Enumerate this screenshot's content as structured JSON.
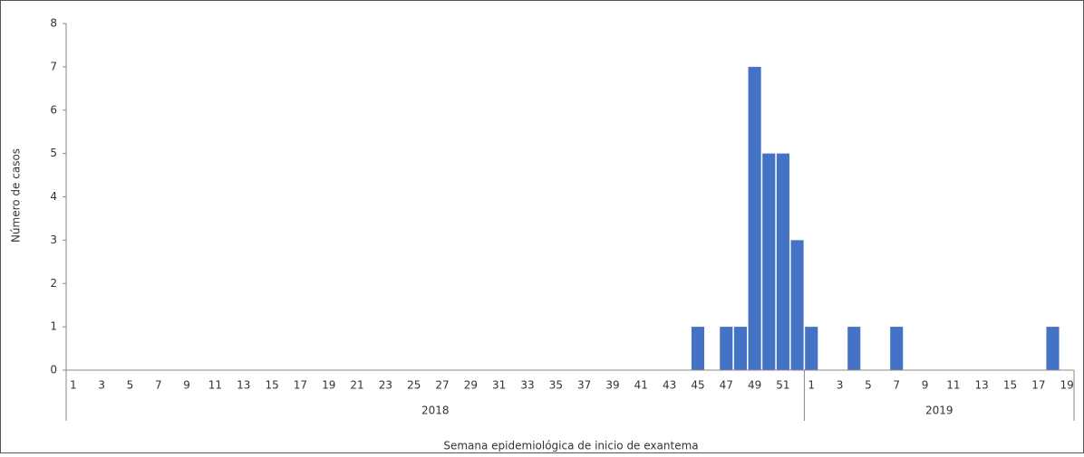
{
  "chart_data": {
    "type": "bar",
    "y_label": "Número de casos",
    "x_label": "Semana epidemiológica de inicio de exantema",
    "color": "#4472c4",
    "ylim": [
      0,
      8
    ],
    "yticks": [
      0,
      1,
      2,
      3,
      4,
      5,
      6,
      7,
      8
    ],
    "grid": false,
    "groups": [
      {
        "name": "2018",
        "categories": [
          "1",
          null,
          "3",
          null,
          "5",
          null,
          "7",
          null,
          "9",
          null,
          "11",
          null,
          "13",
          null,
          "15",
          null,
          "17",
          null,
          "19",
          null,
          "21",
          null,
          "23",
          null,
          "25",
          null,
          "27",
          null,
          "29",
          null,
          "31",
          null,
          "33",
          null,
          "35",
          null,
          "37",
          null,
          "39",
          null,
          "41",
          null,
          "43",
          null,
          "45",
          null,
          "47",
          null,
          "49",
          null,
          "51",
          null
        ],
        "values": [
          0,
          0,
          0,
          0,
          0,
          0,
          0,
          0,
          0,
          0,
          0,
          0,
          0,
          0,
          0,
          0,
          0,
          0,
          0,
          0,
          0,
          0,
          0,
          0,
          0,
          0,
          0,
          0,
          0,
          0,
          0,
          0,
          0,
          0,
          0,
          0,
          0,
          0,
          0,
          0,
          0,
          0,
          0,
          0,
          1,
          0,
          1,
          1,
          7,
          5,
          5,
          3
        ]
      },
      {
        "name": "2019",
        "categories": [
          "1",
          null,
          "3",
          null,
          "5",
          null,
          "7",
          null,
          "9",
          null,
          "11",
          null,
          "13",
          null,
          "15",
          null,
          "17",
          null,
          "19"
        ],
        "values": [
          1,
          0,
          0,
          1,
          0,
          0,
          1,
          0,
          0,
          0,
          0,
          0,
          0,
          0,
          0,
          0,
          0,
          1,
          0
        ]
      }
    ]
  }
}
